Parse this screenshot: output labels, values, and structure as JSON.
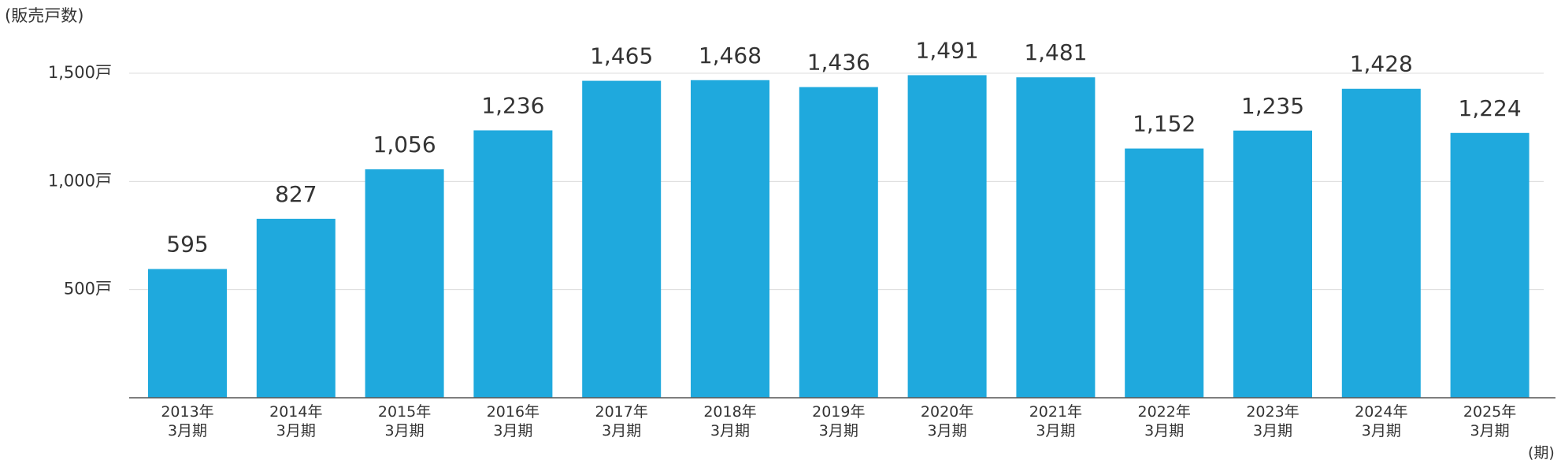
{
  "chart_data": {
    "type": "bar",
    "y_axis_label": "(販売戸数)",
    "x_axis_label": "(期)",
    "categories": [
      "2013年\n3月期",
      "2014年\n3月期",
      "2015年\n3月期",
      "2016年\n3月期",
      "2017年\n3月期",
      "2018年\n3月期",
      "2019年\n3月期",
      "2020年\n3月期",
      "2021年\n3月期",
      "2022年\n3月期",
      "2023年\n3月期",
      "2024年\n3月期",
      "2025年\n3月期"
    ],
    "values": [
      595,
      827,
      1056,
      1236,
      1465,
      1468,
      1436,
      1491,
      1481,
      1152,
      1235,
      1428,
      1224
    ],
    "value_labels": [
      "595",
      "827",
      "1,056",
      "1,236",
      "1,465",
      "1,468",
      "1,436",
      "1,491",
      "1,481",
      "1,152",
      "1,235",
      "1,428",
      "1,224"
    ],
    "color": "#1fa9dd",
    "ylim": [
      0,
      1600
    ],
    "yticks": [
      {
        "value": 500,
        "label": "500戸"
      },
      {
        "value": 1000,
        "label": "1,000戸"
      },
      {
        "value": 1500,
        "label": "1,500戸"
      }
    ],
    "grid": true
  }
}
